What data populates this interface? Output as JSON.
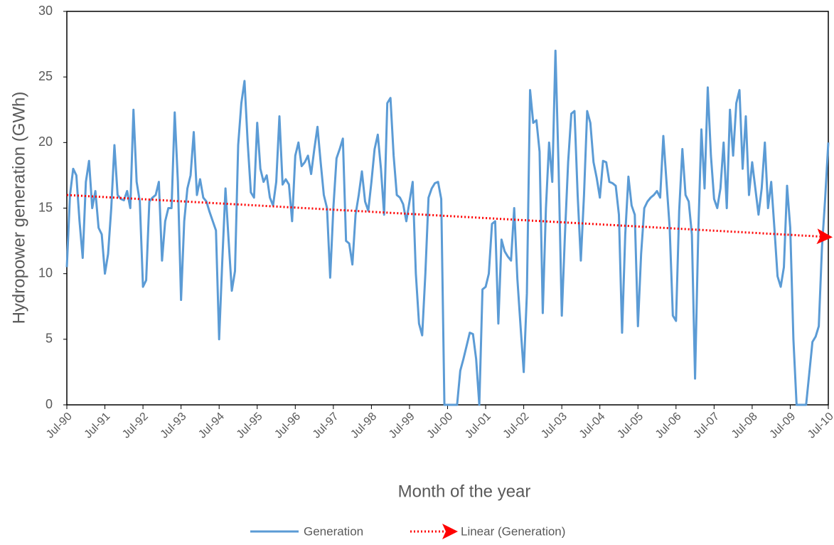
{
  "chart_data": {
    "type": "line",
    "y_label": "Hydropower generation (GWh)",
    "x_label": "Month of the year",
    "ylim": [
      0,
      30
    ],
    "yticks": [
      0,
      5,
      10,
      15,
      20,
      25,
      30
    ],
    "categories": [
      "Jul-90",
      null,
      null,
      null,
      null,
      null,
      null,
      null,
      null,
      null,
      null,
      null,
      "Jul-91",
      null,
      null,
      null,
      null,
      null,
      null,
      null,
      null,
      null,
      null,
      null,
      "Jul-92",
      null,
      null,
      null,
      null,
      null,
      null,
      null,
      null,
      null,
      null,
      null,
      "Jul-93",
      null,
      null,
      null,
      null,
      null,
      null,
      null,
      null,
      null,
      null,
      null,
      "Jul-94",
      null,
      null,
      null,
      null,
      null,
      null,
      null,
      null,
      null,
      null,
      null,
      "Jul-95",
      null,
      null,
      null,
      null,
      null,
      null,
      null,
      null,
      null,
      null,
      null,
      "Jul-96",
      null,
      null,
      null,
      null,
      null,
      null,
      null,
      null,
      null,
      null,
      null,
      "Jul-97",
      null,
      null,
      null,
      null,
      null,
      null,
      null,
      null,
      null,
      null,
      null,
      "Jul-98",
      null,
      null,
      null,
      null,
      null,
      null,
      null,
      null,
      null,
      null,
      null,
      "Jul-99",
      null,
      null,
      null,
      null,
      null,
      null,
      null,
      null,
      null,
      null,
      null,
      "Jul-00",
      null,
      null,
      null,
      null,
      null,
      null,
      null,
      null,
      null,
      null,
      null,
      "Jul-01",
      null,
      null,
      null,
      null,
      null,
      null,
      null,
      null,
      null,
      null,
      null,
      "Jul-02",
      null,
      null,
      null,
      null,
      null,
      null,
      null,
      null,
      null,
      null,
      null,
      "Jul-03",
      null,
      null,
      null,
      null,
      null,
      null,
      null,
      null,
      null,
      null,
      null,
      "Jul-04",
      null,
      null,
      null,
      null,
      null,
      null,
      null,
      null,
      null,
      null,
      null,
      "Jul-05",
      null,
      null,
      null,
      null,
      null,
      null,
      null,
      null,
      null,
      null,
      null,
      "Jul-06",
      null,
      null,
      null,
      null,
      null,
      null,
      null,
      null,
      null,
      null,
      null,
      "Jul-07",
      null,
      null,
      null,
      null,
      null,
      null,
      null,
      null,
      null,
      null,
      null,
      "Jul-08",
      null,
      null,
      null,
      null,
      null,
      null,
      null,
      null,
      null,
      null,
      null,
      "Jul-09",
      null,
      null,
      null,
      null,
      null,
      null,
      null,
      null,
      null,
      null,
      null,
      "Jul-10"
    ],
    "series": [
      {
        "name": "Generation",
        "color": "#5b9bd5",
        "values": [
          10.5,
          16,
          18,
          17.5,
          14,
          11.2,
          17,
          18.6,
          15,
          16.3,
          13.5,
          13,
          10,
          11.5,
          15,
          19.8,
          16,
          15.7,
          15.6,
          16.3,
          15,
          22.5,
          17,
          15.5,
          9,
          9.5,
          15.5,
          15.8,
          16,
          17,
          11,
          14,
          15,
          15,
          22.3,
          17,
          8,
          14,
          16.5,
          17.5,
          20.8,
          16,
          17.2,
          15.8,
          15.5,
          14.7,
          14,
          13.3,
          5,
          11,
          16.5,
          12.5,
          8.7,
          10.2,
          19.8,
          23,
          24.7,
          20,
          16.2,
          15.8,
          21.5,
          18,
          17,
          17.5,
          15.8,
          15.2,
          17,
          22,
          16.8,
          17.2,
          16.8,
          14,
          19,
          20,
          18.2,
          18.5,
          19,
          17.6,
          19.5,
          21.2,
          18.5,
          16,
          15,
          9.7,
          15,
          18.8,
          19.5,
          20.3,
          12.5,
          12.3,
          10.7,
          14.5,
          16,
          17.8,
          15.5,
          14.8,
          17,
          19.5,
          20.6,
          18,
          14.5,
          23,
          23.4,
          19,
          16,
          15.8,
          15.3,
          14,
          15.5,
          17,
          10,
          6.2,
          5.3,
          10,
          15.8,
          16.5,
          16.9,
          17,
          15.7,
          0,
          0,
          0,
          0,
          0,
          2.6,
          3.5,
          4.5,
          5.5,
          5.4,
          3.5,
          0,
          8.8,
          9,
          10,
          13.8,
          14,
          6.2,
          12.6,
          11.7,
          11.3,
          11,
          15,
          9.6,
          6,
          2.5,
          8.5,
          24,
          21.5,
          21.7,
          19.3,
          7,
          15,
          20,
          17,
          27,
          18,
          6.8,
          13,
          18.5,
          22.2,
          22.4,
          16,
          11,
          16,
          22.4,
          21.5,
          18.5,
          17.3,
          15.8,
          18.6,
          18.5,
          17,
          16.9,
          16.7,
          14.5,
          5.5,
          13,
          17.4,
          15.2,
          14.5,
          6,
          11.5,
          15,
          15.5,
          15.8,
          16,
          16.3,
          15.8,
          20.5,
          17,
          13.5,
          6.8,
          6.4,
          14.8,
          19.5,
          16,
          15.5,
          13,
          2,
          13,
          21,
          16.5,
          24.2,
          19,
          15.7,
          15,
          16.5,
          20,
          15,
          22.5,
          19,
          23,
          24,
          18,
          22,
          16,
          18.5,
          16.5,
          14.5,
          16.5,
          20,
          15,
          17,
          13.5,
          9.8,
          9,
          10.5,
          16.7,
          13.5,
          5,
          0,
          0,
          0,
          0,
          2.4,
          4.8,
          5.2,
          6,
          12,
          15.7,
          20
        ]
      }
    ],
    "trendline": {
      "name": "Linear (Generation)",
      "color": "#ff0000",
      "values": [
        16,
        12.8
      ]
    }
  }
}
